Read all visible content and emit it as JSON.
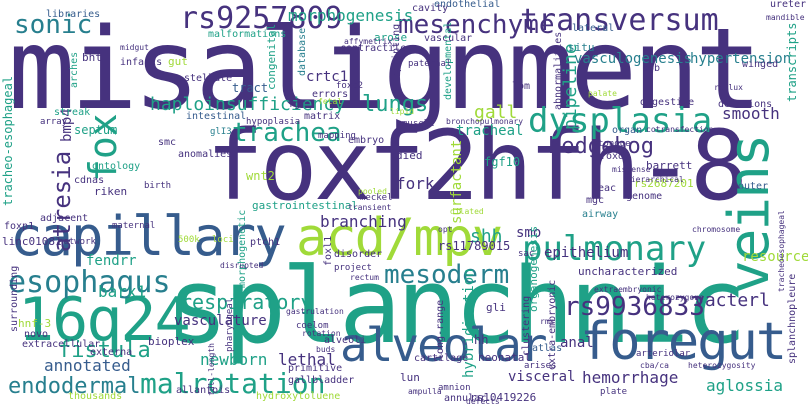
{
  "word_cloud": {
    "palette": {
      "dark_purple": "#46327e",
      "indigo": "#482878",
      "blue": "#365c8d",
      "teal": "#277f8e",
      "green": "#1fa187",
      "lime": "#4ac16d",
      "yellow_green": "#a0da39",
      "yellow": "#fde725"
    },
    "words": [
      "misalignment",
      "foxf2hfh-8",
      "splanchnic",
      "capillary",
      "acd/mpv",
      "alveolar",
      "16q24",
      "foregut",
      "veins",
      "pulmonary",
      "transversum",
      "rs9257809",
      "dysplasia",
      "esophagus",
      "mesoderm",
      "fox",
      "malrotation",
      "rs9936833",
      "mesenchyme",
      "sonic",
      "trachea",
      "endodermal",
      "atresia",
      "hedgehog",
      "respiratory",
      "morphogenesis",
      "fistula",
      "pipeline",
      "haploinsufficiency",
      "lungs",
      "annotated",
      "barx1",
      "vasculogenesis",
      "hypertension",
      "newborn",
      "lethal",
      "branching",
      "gall",
      "fork",
      "bmp4",
      "hemorrhage",
      "anal",
      "shh",
      "smo",
      "vacterl",
      "crtc1",
      "fendrr",
      "tracheal",
      "wnt2",
      "fgf10",
      "visceral",
      "rs11789015",
      "rs10419226",
      "surfactant",
      "epithelium",
      "smooth",
      "aglossia",
      "tracheo-esophageal",
      "transcripts",
      "resource",
      "rs2687201",
      "uncharacterized",
      "vasculature",
      "hybridization",
      "septum",
      "libraries",
      "endothelial",
      "lateral",
      "arose",
      "situ",
      "congenital",
      "lpm",
      "morphogenetic",
      "foxl1",
      "neonatal",
      "gli",
      "hh",
      "barrett",
      "foxd2",
      "digestive",
      "organ",
      "streak",
      "gastrointestinal",
      "bioplex",
      "surrounding",
      "intestinal",
      "hnf-3",
      "riken",
      "ptch1",
      "died",
      "embryo",
      "cdnas",
      "tract",
      "gut",
      "stellate",
      "bht",
      "infants",
      "arches",
      "database",
      "imprinting",
      "developmental",
      "abnormalities",
      "spb",
      "deletions",
      "outer",
      "ureter",
      "winged",
      "eac",
      "mgc",
      "genome",
      "airway",
      "lun",
      "alveoli",
      "cartilage",
      "clustering",
      "long-range",
      "extra-embryonic",
      "organogenesis",
      "atlas",
      "splanchnopleure",
      "gallbladder",
      "primitive",
      "annular",
      "hydroxytoluene",
      "allantois",
      "full-length",
      "extracellular",
      "externa",
      "novo",
      "thousands",
      "linc01081",
      "foxp1",
      "adjacent",
      "ontology",
      "anomalies",
      "smc",
      "errors",
      "fgf",
      "matrix",
      "cavity",
      "vascular",
      "malformations",
      "contractile",
      "paternal",
      "mapping",
      "glI3",
      "hypoplasia",
      "muscle",
      "foxc2",
      "cotransfection",
      "mandible",
      "affymetrix",
      "midgut",
      "disorder",
      "project",
      "disrupted",
      "gastrulation",
      "coelom",
      "rotation",
      "buds",
      "arteriolar",
      "cba/ca",
      "heterozygous",
      "tracheoesophageal",
      "network",
      "maternal",
      "birth",
      "500k",
      "loci",
      "pharyngeal",
      "ampulla",
      "bronchopulmonary",
      "meckel",
      "missense",
      "heterozygosity",
      "chromosome",
      "opt",
      "transient",
      "defects",
      "array",
      "reflux",
      "amnion",
      "hierarchical",
      "extraembryonic",
      "arises",
      "rms",
      "plate",
      "tongue",
      "palate",
      "fetal",
      "pooled",
      "sac",
      "dilated",
      "lipid",
      "rectum"
    ]
  }
}
